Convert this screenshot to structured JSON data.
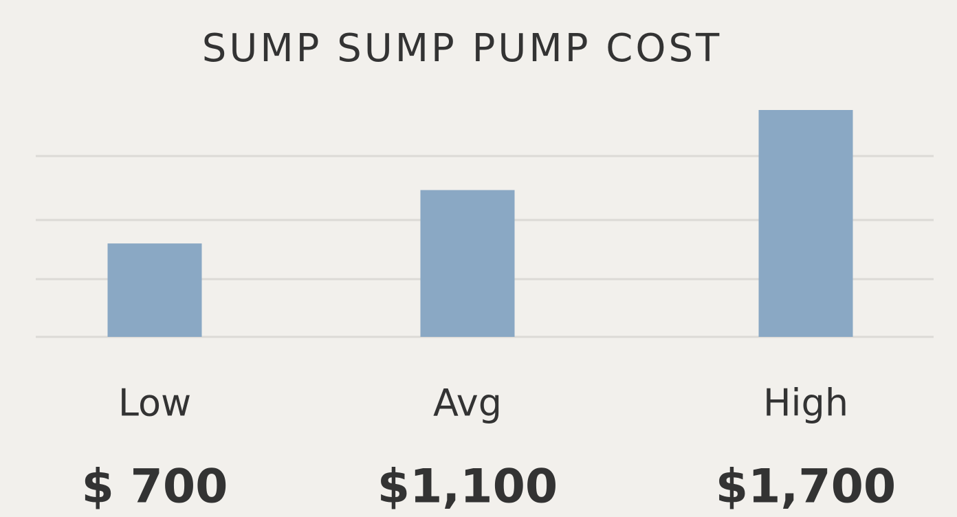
{
  "chart_data": {
    "type": "bar",
    "title": "SUMP SUMP PUMP COST",
    "categories": [
      "Low",
      "Avg",
      "High"
    ],
    "values": [
      700,
      1100,
      1700
    ],
    "value_labels": [
      "$ 700",
      "$1,100",
      "$1,700"
    ],
    "color": "#8aa8c4"
  }
}
